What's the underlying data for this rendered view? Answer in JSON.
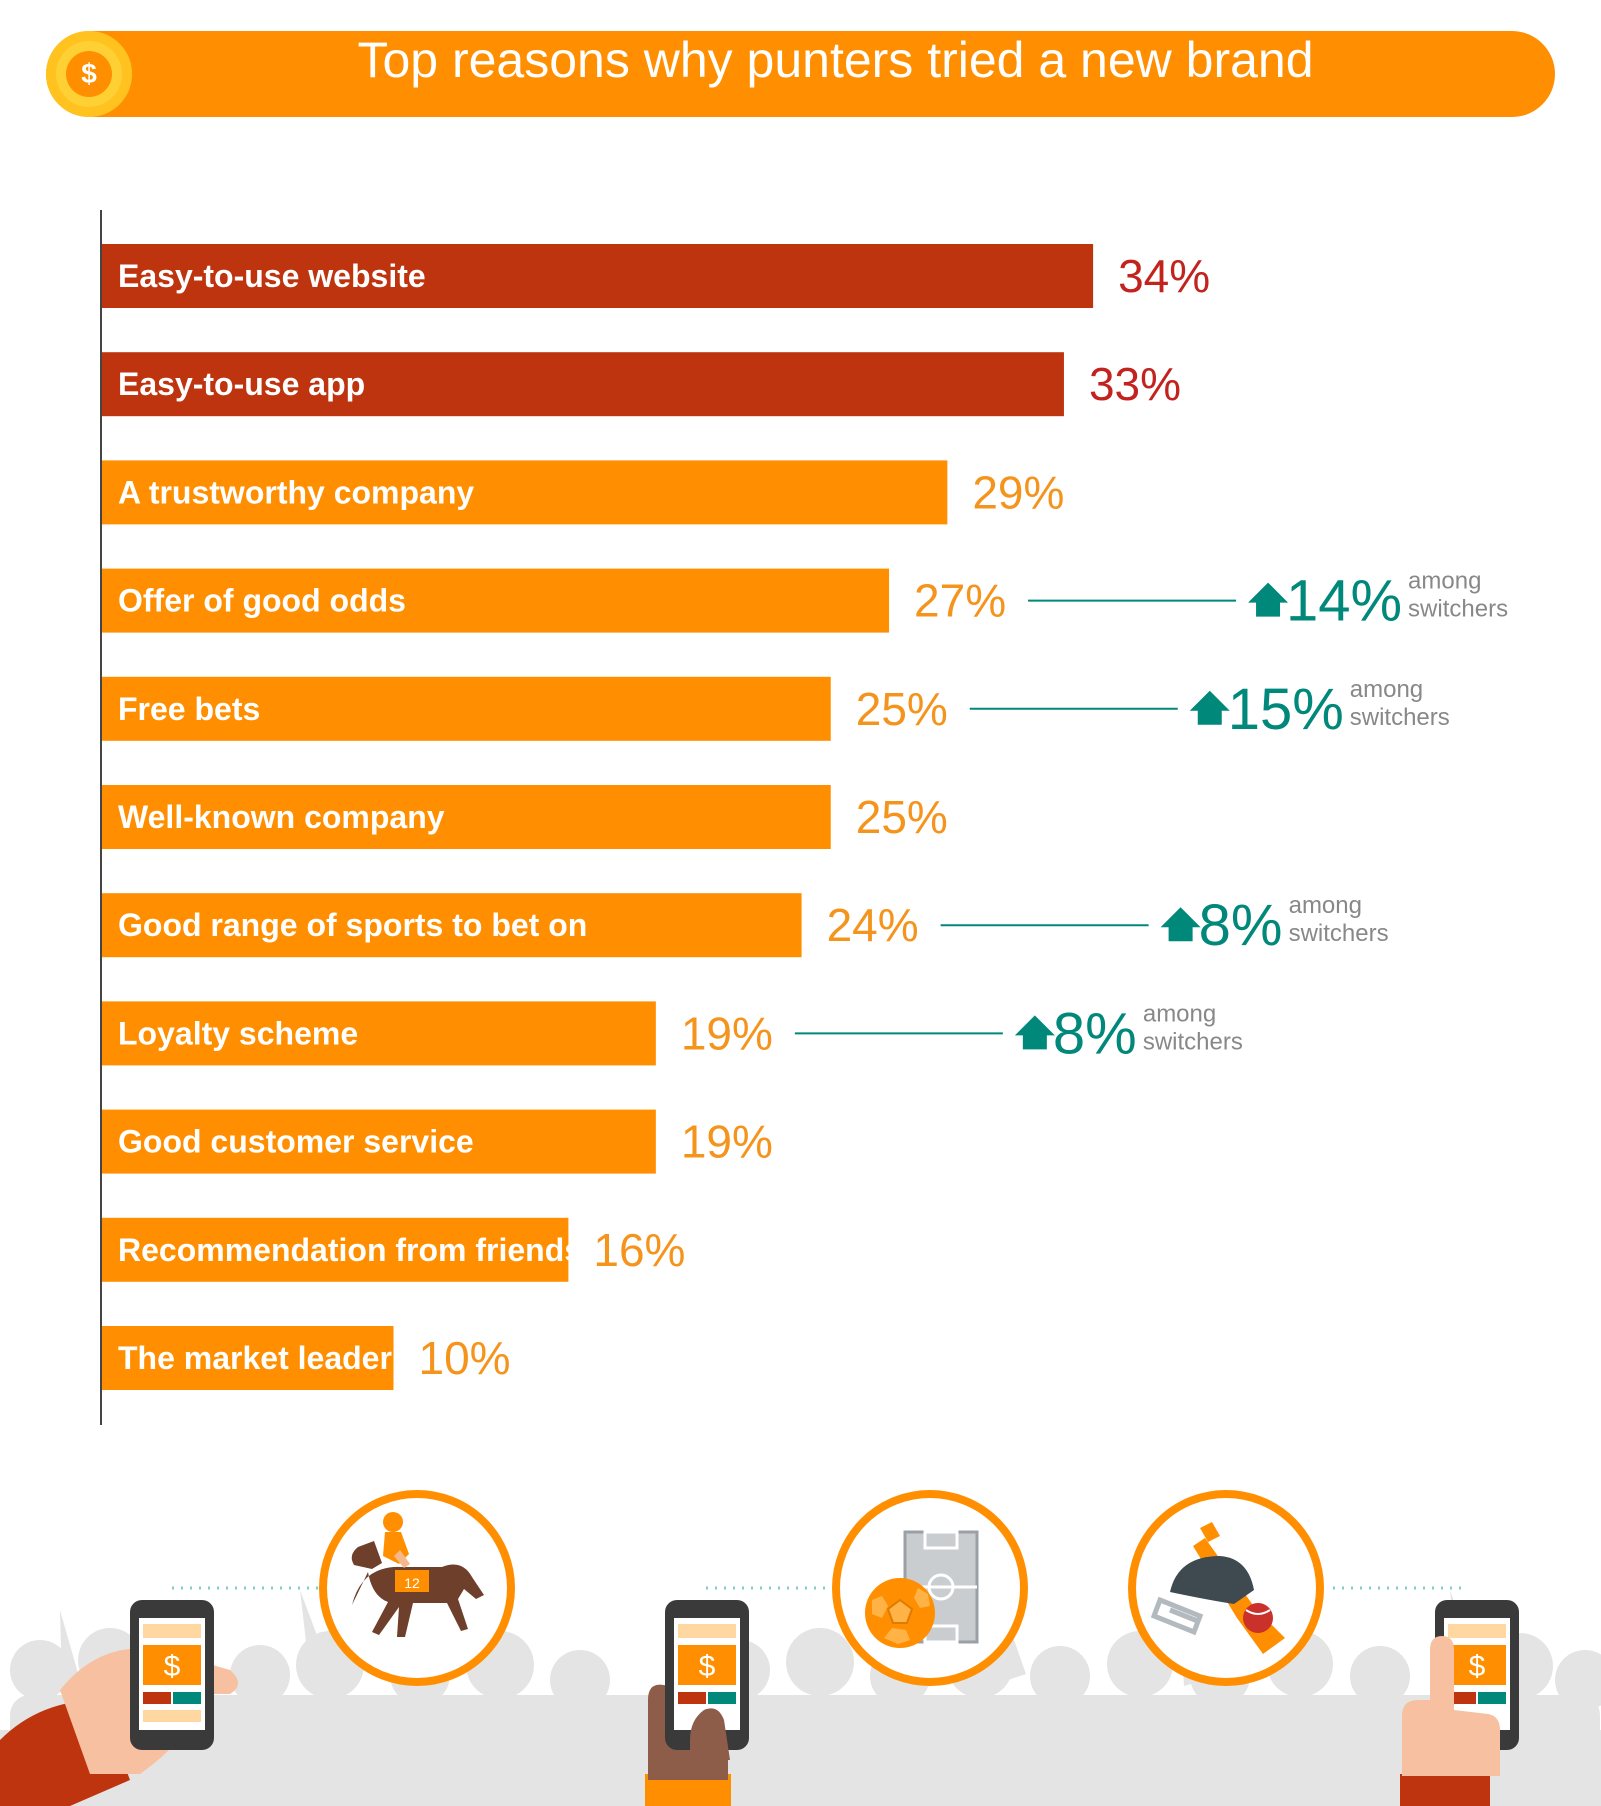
{
  "header": {
    "title": "Top reasons why punters tried a new brand",
    "coin_symbol": "$"
  },
  "chart_data": {
    "type": "bar",
    "orientation": "horizontal",
    "categories": [
      "Easy-to-use website",
      "Easy-to-use app",
      "A trustworthy company",
      "Offer of good odds",
      "Free bets",
      "Well-known company",
      "Good range of sports to bet on",
      "Loyalty scheme",
      "Good customer service",
      "Recommendation from friends",
      "The market leader"
    ],
    "values": [
      34,
      33,
      29,
      27,
      25,
      25,
      24,
      19,
      19,
      16,
      10
    ],
    "value_labels": [
      "34%",
      "33%",
      "29%",
      "27%",
      "25%",
      "25%",
      "24%",
      "19%",
      "19%",
      "16%",
      "10%"
    ],
    "highlighted": [
      true,
      true,
      false,
      false,
      false,
      false,
      false,
      false,
      false,
      false,
      false
    ],
    "annotations": [
      {
        "category": "Offer of good odds",
        "value": "14%",
        "line1": "among",
        "line2": "switchers"
      },
      {
        "category": "Free bets",
        "value": "15%",
        "line1": "among",
        "line2": "switchers"
      },
      {
        "category": "Good range of sports to bet on",
        "value": "8%",
        "line1": "among",
        "line2": "switchers"
      },
      {
        "category": "Loyalty scheme",
        "value": "8%",
        "line1": "among",
        "line2": "switchers"
      }
    ],
    "xlim": [
      0,
      40
    ],
    "grid": false
  },
  "colors": {
    "highlight_bar": "#be340f",
    "highlight_label": "#c2231f",
    "bar": "#ff8f00",
    "value_label": "#f5941d",
    "annotation": "#00887a",
    "annotation_note": "#888888",
    "axis": "#444444"
  },
  "illustration": {
    "icons": [
      "horse-racing-icon",
      "football-icon",
      "cricket-icon",
      "phone-betting-icon"
    ]
  }
}
